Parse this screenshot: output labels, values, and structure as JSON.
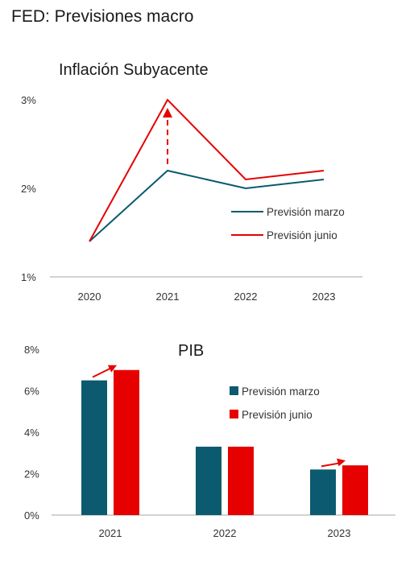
{
  "page": {
    "title": "FED: Previsiones macro"
  },
  "colors": {
    "marzo": "#0b5a70",
    "junio": "#e60000",
    "axis": "#a6a6a6"
  },
  "chart_data": [
    {
      "type": "line",
      "title": "Inflación Subyacente",
      "x": [
        "2020",
        "2021",
        "2022",
        "2023"
      ],
      "series": [
        {
          "name": "Previsión marzo",
          "values": [
            1.4,
            2.2,
            2.0,
            2.1
          ]
        },
        {
          "name": "Previsión junio",
          "values": [
            1.4,
            3.0,
            2.1,
            2.2
          ]
        }
      ],
      "ylim": [
        1,
        3
      ],
      "y_ticks": [
        {
          "value": 1,
          "label": "1%"
        },
        {
          "value": 2,
          "label": "2%"
        },
        {
          "value": 3,
          "label": "3%"
        }
      ],
      "annotation": {
        "type": "dashed-arrow",
        "at": "2021",
        "from": 2.2,
        "to": 3.0
      },
      "legend": "inside-right",
      "grid": false
    },
    {
      "type": "bar",
      "title": "PIB",
      "categories": [
        "2021",
        "2022",
        "2023"
      ],
      "series": [
        {
          "name": "Previsión marzo",
          "values": [
            6.5,
            3.3,
            2.2
          ]
        },
        {
          "name": "Previsión junio",
          "values": [
            7.0,
            3.3,
            2.4
          ]
        }
      ],
      "ylim": [
        0,
        8
      ],
      "y_ticks": [
        {
          "value": 0,
          "label": "0%"
        },
        {
          "value": 2,
          "label": "2%"
        },
        {
          "value": 4,
          "label": "4%"
        },
        {
          "value": 6,
          "label": "6%"
        },
        {
          "value": 8,
          "label": "8%"
        }
      ],
      "annotations": [
        {
          "type": "arrow",
          "category": "2021"
        },
        {
          "type": "arrow",
          "category": "2023"
        }
      ],
      "legend": "top-right",
      "grid": false
    }
  ]
}
